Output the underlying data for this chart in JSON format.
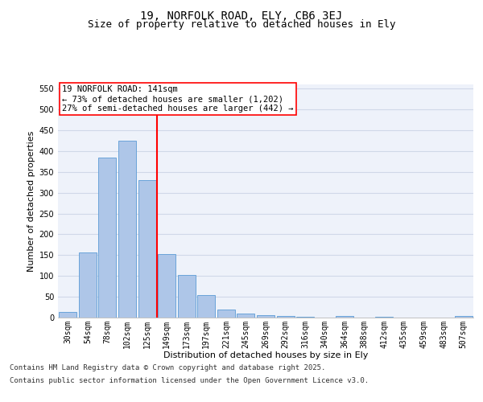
{
  "title_line1": "19, NORFOLK ROAD, ELY, CB6 3EJ",
  "title_line2": "Size of property relative to detached houses in Ely",
  "xlabel": "Distribution of detached houses by size in Ely",
  "ylabel": "Number of detached properties",
  "categories": [
    "30sqm",
    "54sqm",
    "78sqm",
    "102sqm",
    "125sqm",
    "149sqm",
    "173sqm",
    "197sqm",
    "221sqm",
    "245sqm",
    "269sqm",
    "292sqm",
    "316sqm",
    "340sqm",
    "364sqm",
    "388sqm",
    "412sqm",
    "435sqm",
    "459sqm",
    "483sqm",
    "507sqm"
  ],
  "values": [
    13,
    157,
    385,
    425,
    330,
    152,
    102,
    55,
    19,
    10,
    5,
    4,
    1,
    0,
    3,
    0,
    1,
    0,
    0,
    0,
    3
  ],
  "bar_color": "#aec6e8",
  "bar_edge_color": "#5b9bd5",
  "vline_color": "red",
  "annotation_text": "19 NORFOLK ROAD: 141sqm\n← 73% of detached houses are smaller (1,202)\n27% of semi-detached houses are larger (442) →",
  "annotation_box_color": "white",
  "annotation_box_edge": "red",
  "ylim": [
    0,
    560
  ],
  "yticks": [
    0,
    50,
    100,
    150,
    200,
    250,
    300,
    350,
    400,
    450,
    500,
    550
  ],
  "grid_color": "#d0d8e8",
  "bg_color": "#eef2fa",
  "footer_line1": "Contains HM Land Registry data © Crown copyright and database right 2025.",
  "footer_line2": "Contains public sector information licensed under the Open Government Licence v3.0.",
  "title_fontsize": 10,
  "subtitle_fontsize": 9,
  "axis_label_fontsize": 8,
  "tick_fontsize": 7,
  "annotation_fontsize": 7.5,
  "footer_fontsize": 6.5
}
